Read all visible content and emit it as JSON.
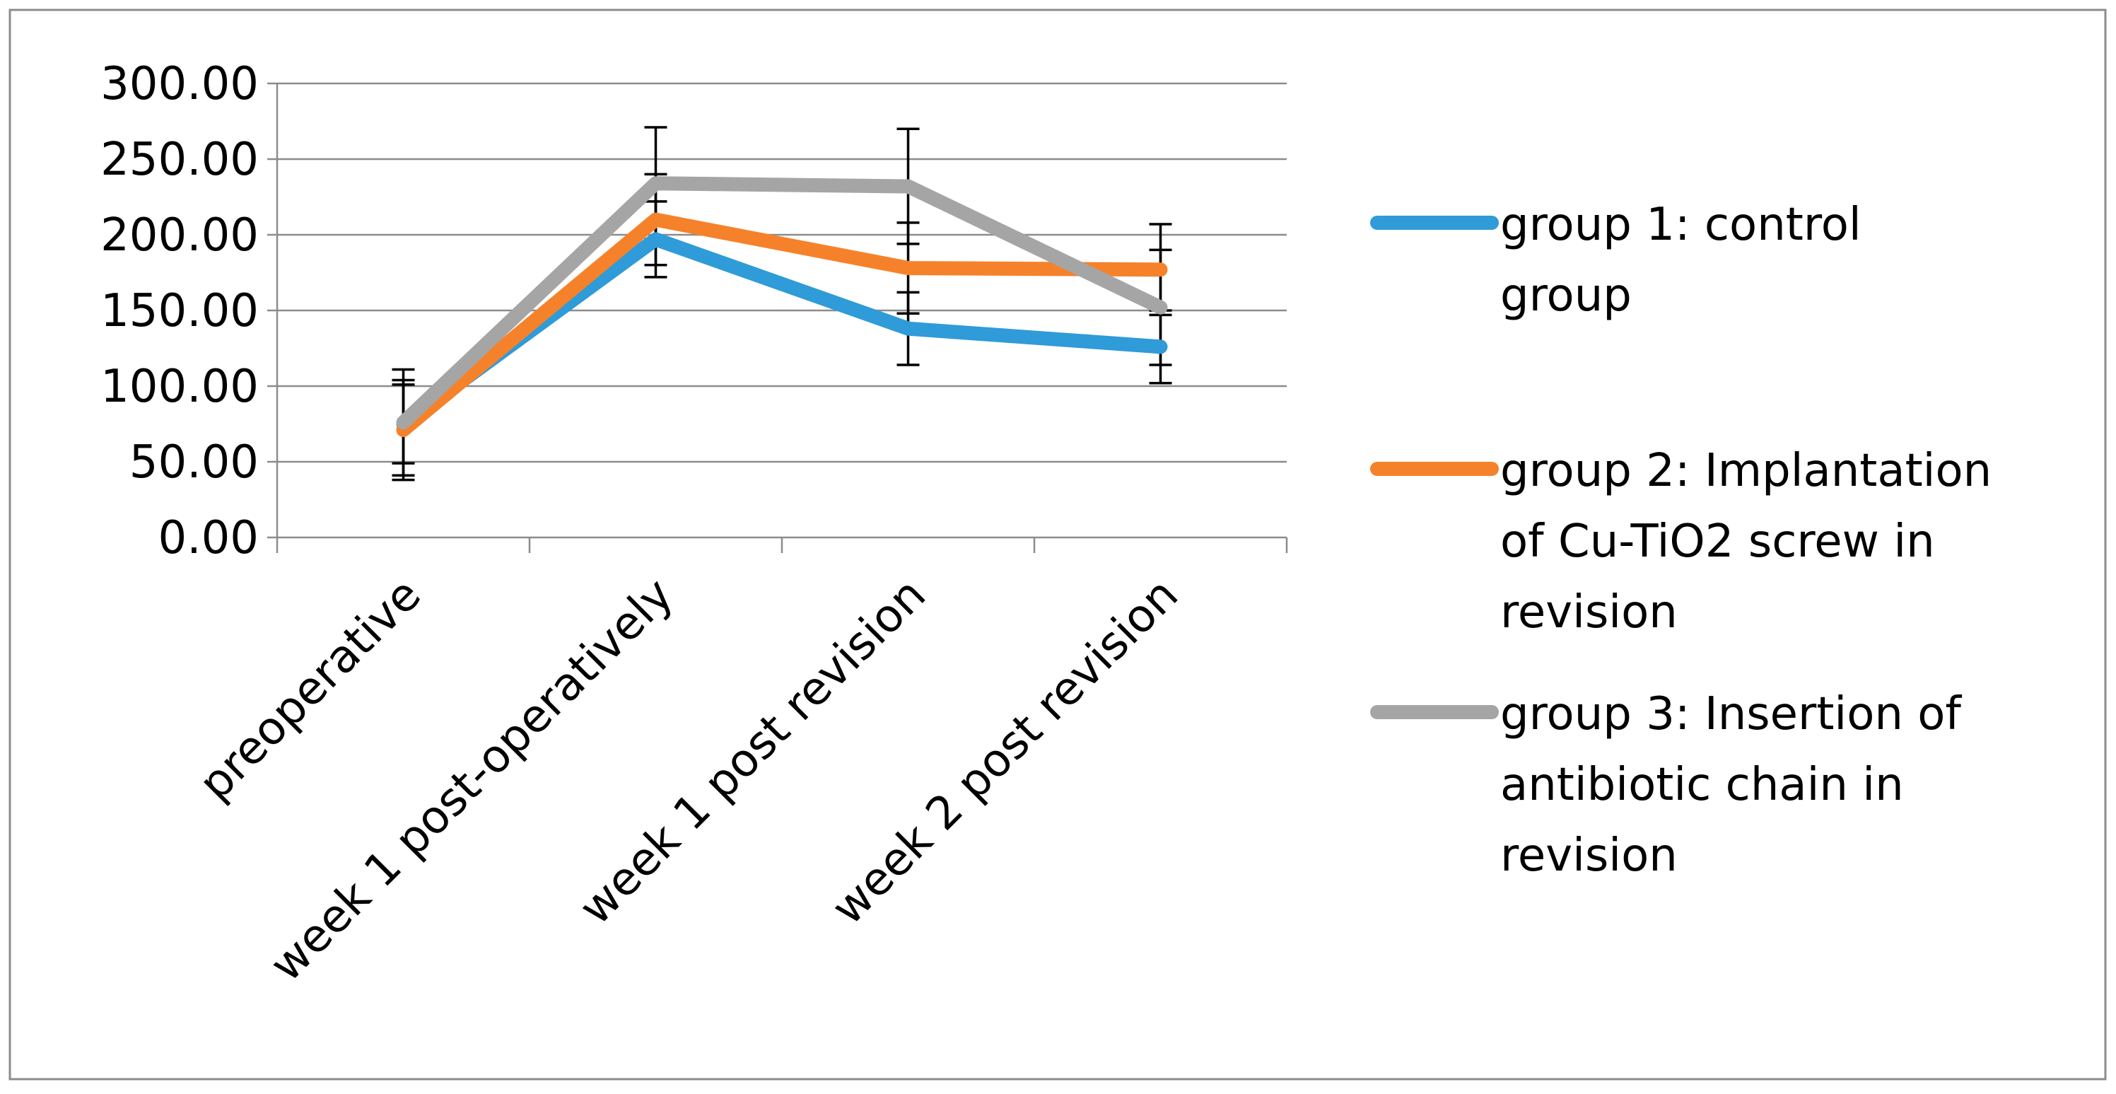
{
  "chart_data": {
    "type": "line",
    "title": "",
    "xlabel": "",
    "ylabel": "",
    "categories": [
      "preoperative",
      "week 1 post-operatively",
      "week 1 post revision",
      "week 2 post revision"
    ],
    "ylim": [
      0,
      300
    ],
    "yticks": [
      0,
      50,
      100,
      150,
      200,
      250,
      300
    ],
    "ytick_labels": [
      "0.00",
      "50.00",
      "100.00",
      "150.00",
      "200.00",
      "250.00",
      "300.00"
    ],
    "grid": true,
    "legend_position": "right",
    "series": [
      {
        "name": "group 1: control group",
        "legend_lines": [
          "group 1: control",
          "group"
        ],
        "color": "#2F9BD8",
        "values": [
          75,
          197,
          138,
          126
        ],
        "errors": [
          26,
          25,
          24,
          24
        ]
      },
      {
        "name": "group 2: Implantation of Cu-TiO2 screw in revision",
        "legend_lines": [
          "group 2: Implantation",
          "of Cu-TiO2 screw in",
          "revision"
        ],
        "color": "#F5822A",
        "values": [
          71,
          210,
          178,
          177
        ],
        "errors": [
          33,
          30,
          30,
          30
        ]
      },
      {
        "name": "group 3: Insertion of antibiotic chain in revision",
        "legend_lines": [
          "group 3: Insertion of",
          "antibiotic chain in",
          "revision"
        ],
        "color": "#A5A5A5",
        "values": [
          76,
          234,
          232,
          152
        ],
        "errors": [
          35,
          37,
          38,
          38
        ]
      }
    ]
  }
}
